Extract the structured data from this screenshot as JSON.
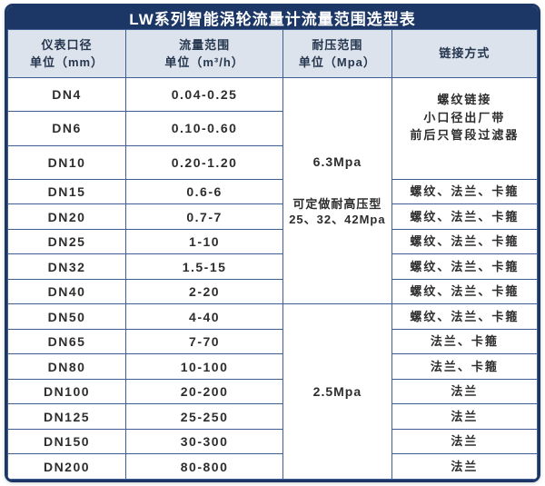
{
  "title": "LW系列智能涡轮流量计流量范围选型表",
  "columns": [
    {
      "label": "仪表口径",
      "unit": "单位（mm）"
    },
    {
      "label": "流量范围",
      "unit": "单位（m³/h）"
    },
    {
      "label": "耐压范围",
      "unit": "单位（Mpa）"
    },
    {
      "label": "链接方式",
      "unit": ""
    }
  ],
  "rows": [
    {
      "dn": "DN4",
      "flow_range": "0.04-0.25"
    },
    {
      "dn": "DN6",
      "flow_range": "0.10-0.60"
    },
    {
      "dn": "DN10",
      "flow_range": "0.20-1.20"
    },
    {
      "dn": "DN15",
      "flow_range": "0.6-6"
    },
    {
      "dn": "DN20",
      "flow_range": "0.7-7"
    },
    {
      "dn": "DN25",
      "flow_range": "1-10"
    },
    {
      "dn": "DN32",
      "flow_range": "1.5-15"
    },
    {
      "dn": "DN40",
      "flow_range": "2-20"
    },
    {
      "dn": "DN50",
      "flow_range": "4-40"
    },
    {
      "dn": "DN65",
      "flow_range": "7-70"
    },
    {
      "dn": "DN80",
      "flow_range": "10-100"
    },
    {
      "dn": "DN100",
      "flow_range": "20-200"
    },
    {
      "dn": "DN125",
      "flow_range": "25-250"
    },
    {
      "dn": "DN150",
      "flow_range": "30-300"
    },
    {
      "dn": "DN200",
      "flow_range": "80-800"
    }
  ],
  "pressure_cells": [
    {
      "row": 0,
      "span": 8,
      "main": "6.3Mpa",
      "note_lines": [
        "可定做耐高压型",
        "25、32、42Mpa"
      ]
    },
    {
      "row": 8,
      "span": 7,
      "main": "2.5Mpa",
      "note_lines": []
    }
  ],
  "link_cells": [
    {
      "row": 0,
      "span": 3,
      "lines": [
        "螺纹链接",
        "小口径出厂带",
        "前后只管段过滤器"
      ]
    },
    {
      "row": 3,
      "span": 1,
      "lines": [
        "螺纹、法兰、卡箍"
      ]
    },
    {
      "row": 4,
      "span": 1,
      "lines": [
        "螺纹、法兰、卡箍"
      ]
    },
    {
      "row": 5,
      "span": 1,
      "lines": [
        "螺纹、法兰、卡箍"
      ]
    },
    {
      "row": 6,
      "span": 1,
      "lines": [
        "螺纹、法兰、卡箍"
      ]
    },
    {
      "row": 7,
      "span": 1,
      "lines": [
        "螺纹、法兰、卡箍"
      ]
    },
    {
      "row": 8,
      "span": 1,
      "lines": [
        "螺纹、法兰、卡箍"
      ]
    },
    {
      "row": 9,
      "span": 1,
      "lines": [
        "法兰、卡箍"
      ]
    },
    {
      "row": 10,
      "span": 1,
      "lines": [
        "法兰、卡箍"
      ]
    },
    {
      "row": 11,
      "span": 1,
      "lines": [
        "法兰"
      ]
    },
    {
      "row": 12,
      "span": 1,
      "lines": [
        "法兰"
      ]
    },
    {
      "row": 13,
      "span": 1,
      "lines": [
        "法兰"
      ]
    },
    {
      "row": 14,
      "span": 1,
      "lines": [
        "法兰"
      ]
    }
  ],
  "colors": {
    "title_bar": "#1c3766",
    "outer_border": "#1c3766",
    "grid_line": "#3e5d93",
    "header_bg": "#dce3ec",
    "header_text": "#25364e",
    "body_text": "#2d2d2d",
    "title_text": "#ffffff"
  }
}
